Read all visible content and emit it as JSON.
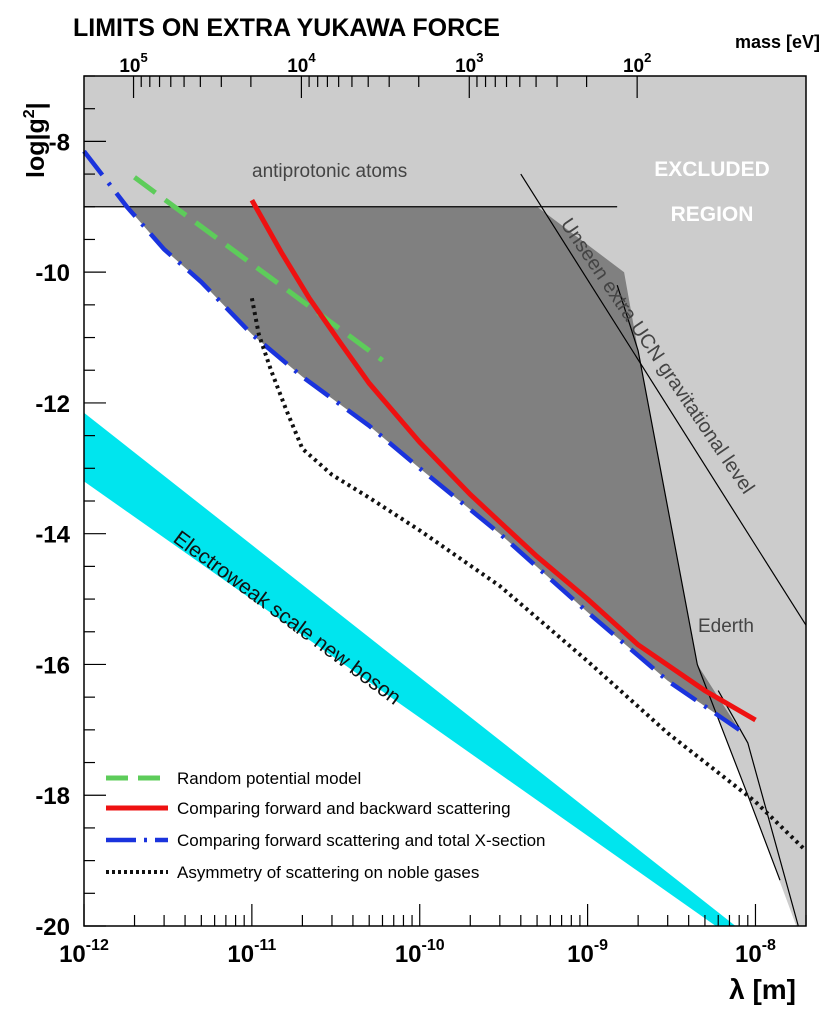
{
  "chart_data": {
    "type": "line",
    "title": "LIMITS ON EXTRA YUKAWA FORCE",
    "xlabel": "λ  [m]",
    "ylabel": "log|g",
    "ylabel_sup": "2",
    "ylabel_end": "|",
    "top_axis_label": "mass [eV]",
    "x_scale": "log",
    "xlim": [
      1e-12,
      2e-08
    ],
    "ylim": [
      -20,
      -7
    ],
    "x_ticks": [
      {
        "exp": "-12",
        "value": 1e-12
      },
      {
        "exp": "-11",
        "value": 1e-11
      },
      {
        "exp": "-10",
        "value": 1e-10
      },
      {
        "exp": "-9",
        "value": 1e-09
      },
      {
        "exp": "-8",
        "value": 1e-08
      }
    ],
    "y_ticks": [
      {
        "label": "-8",
        "value": -8
      },
      {
        "label": "-10",
        "value": -10
      },
      {
        "label": "-12",
        "value": -12
      },
      {
        "label": "-14",
        "value": -14
      },
      {
        "label": "-16",
        "value": -16
      },
      {
        "label": "-18",
        "value": -18
      },
      {
        "label": "-20",
        "value": -20
      }
    ],
    "top_ticks": [
      {
        "exp": "5",
        "value": 100000
      },
      {
        "exp": "4",
        "value": 10000
      },
      {
        "exp": "3",
        "value": 1000
      },
      {
        "exp": "2",
        "value": 100
      }
    ],
    "series": [
      {
        "name": "Random potential model",
        "style": "long-dash",
        "color": "#5dcc5a",
        "x": [
          2e-12,
          6e-11
        ],
        "y": [
          -8.55,
          -11.35
        ]
      },
      {
        "name": "Comparing forward and backward scattering",
        "style": "solid",
        "color": "#ee1111",
        "x": [
          1e-11,
          1.5e-11,
          2.2e-11,
          3.3e-11,
          5e-11,
          1e-10,
          2e-10,
          5e-10,
          1e-09,
          2e-09,
          5e-09,
          1e-08
        ],
        "y": [
          -8.9,
          -9.7,
          -10.4,
          -11.05,
          -11.7,
          -12.6,
          -13.4,
          -14.35,
          -15.0,
          -15.7,
          -16.4,
          -16.85
        ]
      },
      {
        "name": "Comparing forward scattering and total X-section",
        "style": "dash-dot",
        "color": "#1a33dd",
        "x": [
          1e-12,
          1.8e-12,
          3e-12,
          5e-12,
          1e-11,
          2e-11,
          5e-11,
          1e-10,
          3e-10,
          1e-09,
          3e-09,
          8e-09
        ],
        "y": [
          -8.15,
          -9.0,
          -9.65,
          -10.15,
          -10.95,
          -11.6,
          -12.35,
          -13.0,
          -14.0,
          -15.2,
          -16.25,
          -17.0
        ]
      },
      {
        "name": "Asymmetry of scattering on noble gases",
        "style": "dotted",
        "color": "#111111",
        "x": [
          1e-11,
          1.1e-11,
          1.3e-11,
          1.6e-11,
          2e-11,
          3e-11,
          5e-11,
          1e-10,
          3e-10,
          1e-09,
          3e-09,
          1e-08,
          2e-08
        ],
        "y": [
          -10.4,
          -10.95,
          -11.5,
          -12.1,
          -12.7,
          -13.1,
          -13.45,
          -13.95,
          -14.8,
          -15.95,
          -17.05,
          -18.1,
          -18.85
        ]
      }
    ],
    "excluded_region": {
      "label_line1": "EXCLUDED",
      "label_line2": "REGION"
    },
    "regions": [
      {
        "name": "antiprotonic atoms",
        "y_boundary": -9.0
      },
      {
        "name": "Unseen extra UCN gravitational level"
      },
      {
        "name": "Ederth"
      },
      {
        "name": "Electroweak scale new boson",
        "color": "#00e5ee"
      }
    ],
    "legend": {
      "placement": "bottom-left"
    }
  }
}
